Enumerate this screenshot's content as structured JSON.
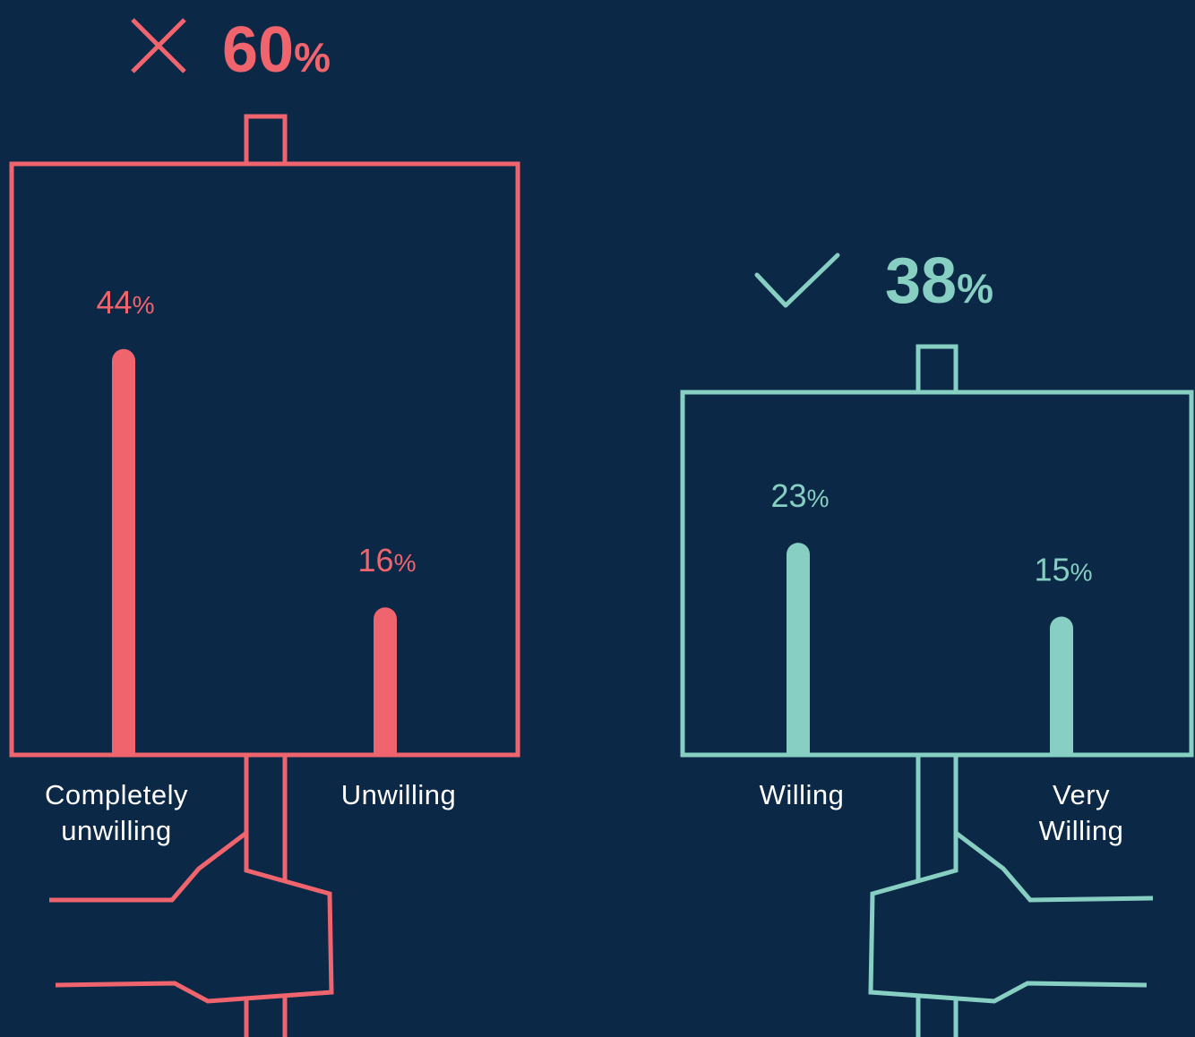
{
  "chart_data": [
    {
      "type": "bar",
      "icon": "cross",
      "color": "#f0646e",
      "total": 60,
      "total_label": "60%",
      "categories": [
        "Completely unwilling",
        "Unwilling"
      ],
      "values": [
        44,
        16
      ],
      "value_labels": [
        "44%",
        "16%"
      ]
    },
    {
      "type": "bar",
      "icon": "check",
      "color": "#86cfc2",
      "total": 38,
      "total_label": "38%",
      "categories": [
        "Willing",
        "Very Willing"
      ],
      "values": [
        23,
        15
      ],
      "value_labels": [
        "23%",
        "15%"
      ]
    }
  ]
}
